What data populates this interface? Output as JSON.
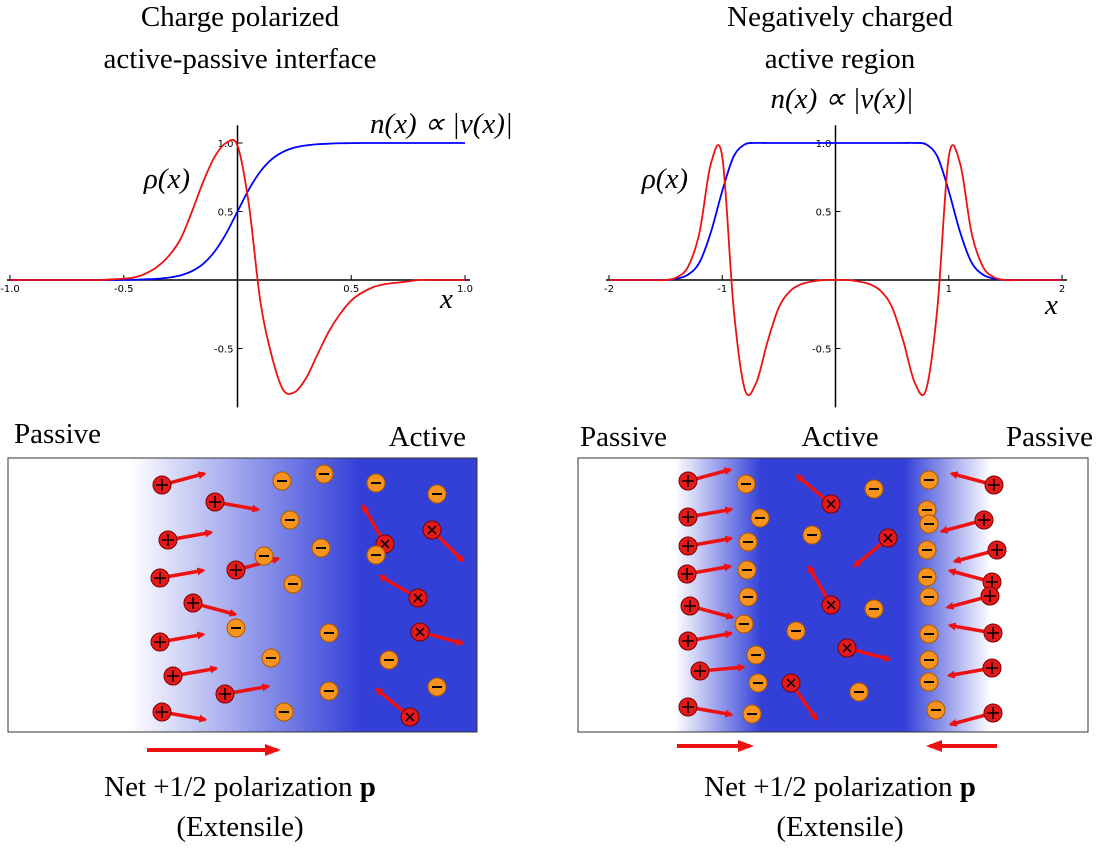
{
  "chart_data": [
    {
      "type": "line",
      "title": [
        "Charge polarized",
        "active-passive interface"
      ],
      "xlabel": "x",
      "x": [
        -1,
        -0.95,
        -0.9,
        -0.85,
        -0.8,
        -0.75,
        -0.7,
        -0.65,
        -0.6,
        -0.55,
        -0.5,
        -0.45,
        -0.4,
        -0.35,
        -0.3,
        -0.25,
        -0.2,
        -0.15,
        -0.1,
        -0.05,
        0,
        0.05,
        0.1,
        0.15,
        0.2,
        0.25,
        0.3,
        0.35,
        0.4,
        0.45,
        0.5,
        0.55,
        0.6,
        0.65,
        0.7,
        0.75,
        0.8,
        0.85,
        0.9,
        0.95,
        1
      ],
      "series": [
        {
          "name": "n(x) ∝ |v(x)|",
          "color": "#0000ff",
          "values": [
            0,
            0,
            0,
            0,
            0,
            0,
            0,
            0,
            0,
            0,
            0.001,
            0.002,
            0.005,
            0.009,
            0.018,
            0.034,
            0.065,
            0.119,
            0.209,
            0.339,
            0.5,
            0.661,
            0.791,
            0.881,
            0.935,
            0.966,
            0.982,
            0.991,
            0.995,
            0.998,
            0.999,
            1,
            1,
            1,
            1,
            1,
            1,
            1,
            1,
            1,
            1
          ]
        },
        {
          "name": "ρ(x)",
          "color": "#ee1111",
          "values": [
            0,
            0,
            0,
            0,
            0,
            0,
            0,
            0,
            0,
            0.005,
            0.01,
            0.02,
            0.05,
            0.1,
            0.18,
            0.3,
            0.5,
            0.72,
            0.9,
            1.0,
            0.98,
            0.55,
            -0.15,
            -0.55,
            -0.8,
            -0.82,
            -0.72,
            -0.55,
            -0.38,
            -0.25,
            -0.15,
            -0.09,
            -0.05,
            -0.03,
            -0.02,
            -0.01,
            0,
            0,
            0,
            0,
            0
          ]
        }
      ],
      "xlim": [
        -1,
        1
      ],
      "ylim": [
        -0.93,
        1.13
      ],
      "xticks": [
        {
          "value": -1,
          "label": "-1.0"
        },
        -0.5,
        0.5,
        {
          "value": 1,
          "label": "1.0"
        }
      ],
      "yticks": [
        -0.5,
        0.5,
        {
          "value": 1,
          "label": "1.0"
        }
      ]
    },
    {
      "type": "line",
      "title": [
        "Negatively charged",
        "active region"
      ],
      "xlabel": "x",
      "x": [
        -2,
        -1.9,
        -1.8,
        -1.7,
        -1.6,
        -1.5,
        -1.4,
        -1.3,
        -1.2,
        -1.1,
        -1,
        -0.9,
        -0.8,
        -0.7,
        -0.6,
        -0.5,
        -0.4,
        -0.3,
        -0.2,
        -0.1,
        0,
        0.1,
        0.2,
        0.3,
        0.4,
        0.5,
        0.6,
        0.7,
        0.8,
        0.9,
        1,
        1.1,
        1.2,
        1.3,
        1.4,
        1.5,
        1.6,
        1.7,
        1.8,
        1.9,
        2
      ],
      "series": [
        {
          "name": "n(x) ∝ |v(x)|",
          "color": "#0000ff",
          "values": [
            0,
            0,
            0,
            0,
            0,
            0,
            0.01,
            0.04,
            0.13,
            0.35,
            0.65,
            0.9,
            0.99,
            1,
            1,
            1,
            1,
            1,
            1,
            1,
            1,
            1,
            1,
            1,
            1,
            1,
            1,
            1,
            0.99,
            0.9,
            0.65,
            0.35,
            0.13,
            0.04,
            0.01,
            0,
            0,
            0,
            0,
            0,
            0
          ]
        },
        {
          "name": "ρ(x)",
          "color": "#ee1111",
          "values": [
            0,
            0,
            0,
            0,
            0,
            0,
            0.02,
            0.1,
            0.35,
            0.85,
            0.9,
            -0.2,
            -0.8,
            -0.75,
            -0.45,
            -0.2,
            -0.08,
            -0.03,
            -0.01,
            0,
            0,
            0,
            -0.01,
            -0.03,
            -0.08,
            -0.2,
            -0.45,
            -0.75,
            -0.8,
            -0.2,
            0.9,
            0.85,
            0.35,
            0.1,
            0.02,
            0,
            0,
            0,
            0,
            0,
            0
          ]
        }
      ],
      "xlim": [
        -2,
        2
      ],
      "ylim": [
        -0.93,
        1.13
      ],
      "xticks": [
        -2,
        -1,
        1,
        2
      ],
      "yticks": [
        -0.5,
        0.5,
        {
          "value": 1,
          "label": "1.0"
        }
      ]
    }
  ],
  "diagrams": [
    {
      "labels": [
        "Passive",
        "Active"
      ],
      "caption": [
        "Net +1/2 polarization ",
        "p",
        "(Extensile)"
      ]
    },
    {
      "labels": [
        "Passive",
        "Active",
        "Passive"
      ],
      "caption": [
        "Net +1/2 polarization ",
        "p",
        "(Extensile)"
      ]
    }
  ]
}
